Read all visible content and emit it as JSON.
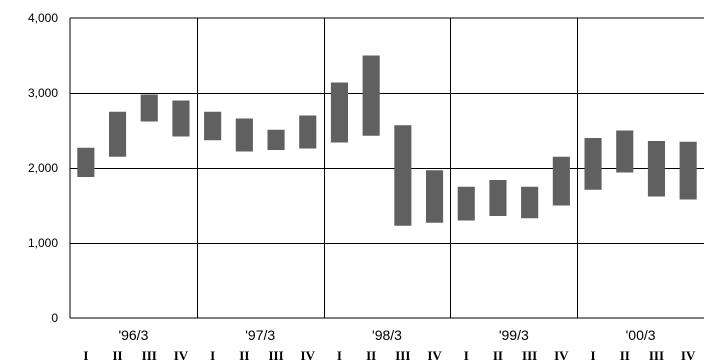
{
  "chart_data": {
    "type": "bar",
    "subtype": "floating-range",
    "title": "",
    "xlabel": "",
    "ylabel": "",
    "ylim": [
      0,
      4000
    ],
    "y_ticks": [
      {
        "value": 0,
        "label": "0"
      },
      {
        "value": 1000,
        "label": "1,000"
      },
      {
        "value": 2000,
        "label": "2,000"
      },
      {
        "value": 3000,
        "label": "3,000"
      },
      {
        "value": 4000,
        "label": "4,000"
      }
    ],
    "grid": true,
    "bar_color": "#606060",
    "groups": [
      {
        "label": "'96/3",
        "quarters": [
          "I",
          "II",
          "III",
          "IV"
        ]
      },
      {
        "label": "'97/3",
        "quarters": [
          "I",
          "II",
          "III",
          "IV"
        ]
      },
      {
        "label": "'98/3",
        "quarters": [
          "I",
          "II",
          "III",
          "IV"
        ]
      },
      {
        "label": "'99/3",
        "quarters": [
          "I",
          "II",
          "III",
          "IV"
        ]
      },
      {
        "label": "'00/3",
        "quarters": [
          "I",
          "II",
          "III",
          "IV"
        ]
      }
    ],
    "ranges": [
      {
        "low": 1880,
        "high": 2270
      },
      {
        "low": 2150,
        "high": 2750
      },
      {
        "low": 2620,
        "high": 2980
      },
      {
        "low": 2420,
        "high": 2900
      },
      {
        "low": 2370,
        "high": 2750
      },
      {
        "low": 2220,
        "high": 2660
      },
      {
        "low": 2240,
        "high": 2510
      },
      {
        "low": 2260,
        "high": 2700
      },
      {
        "low": 2340,
        "high": 3140
      },
      {
        "low": 2430,
        "high": 3500
      },
      {
        "low": 1230,
        "high": 2570
      },
      {
        "low": 1270,
        "high": 1970
      },
      {
        "low": 1300,
        "high": 1750
      },
      {
        "low": 1360,
        "high": 1840
      },
      {
        "low": 1330,
        "high": 1750
      },
      {
        "low": 1500,
        "high": 2150
      },
      {
        "low": 1710,
        "high": 2400
      },
      {
        "low": 1940,
        "high": 2500
      },
      {
        "low": 1620,
        "high": 2360
      },
      {
        "low": 1580,
        "high": 2350
      }
    ]
  }
}
